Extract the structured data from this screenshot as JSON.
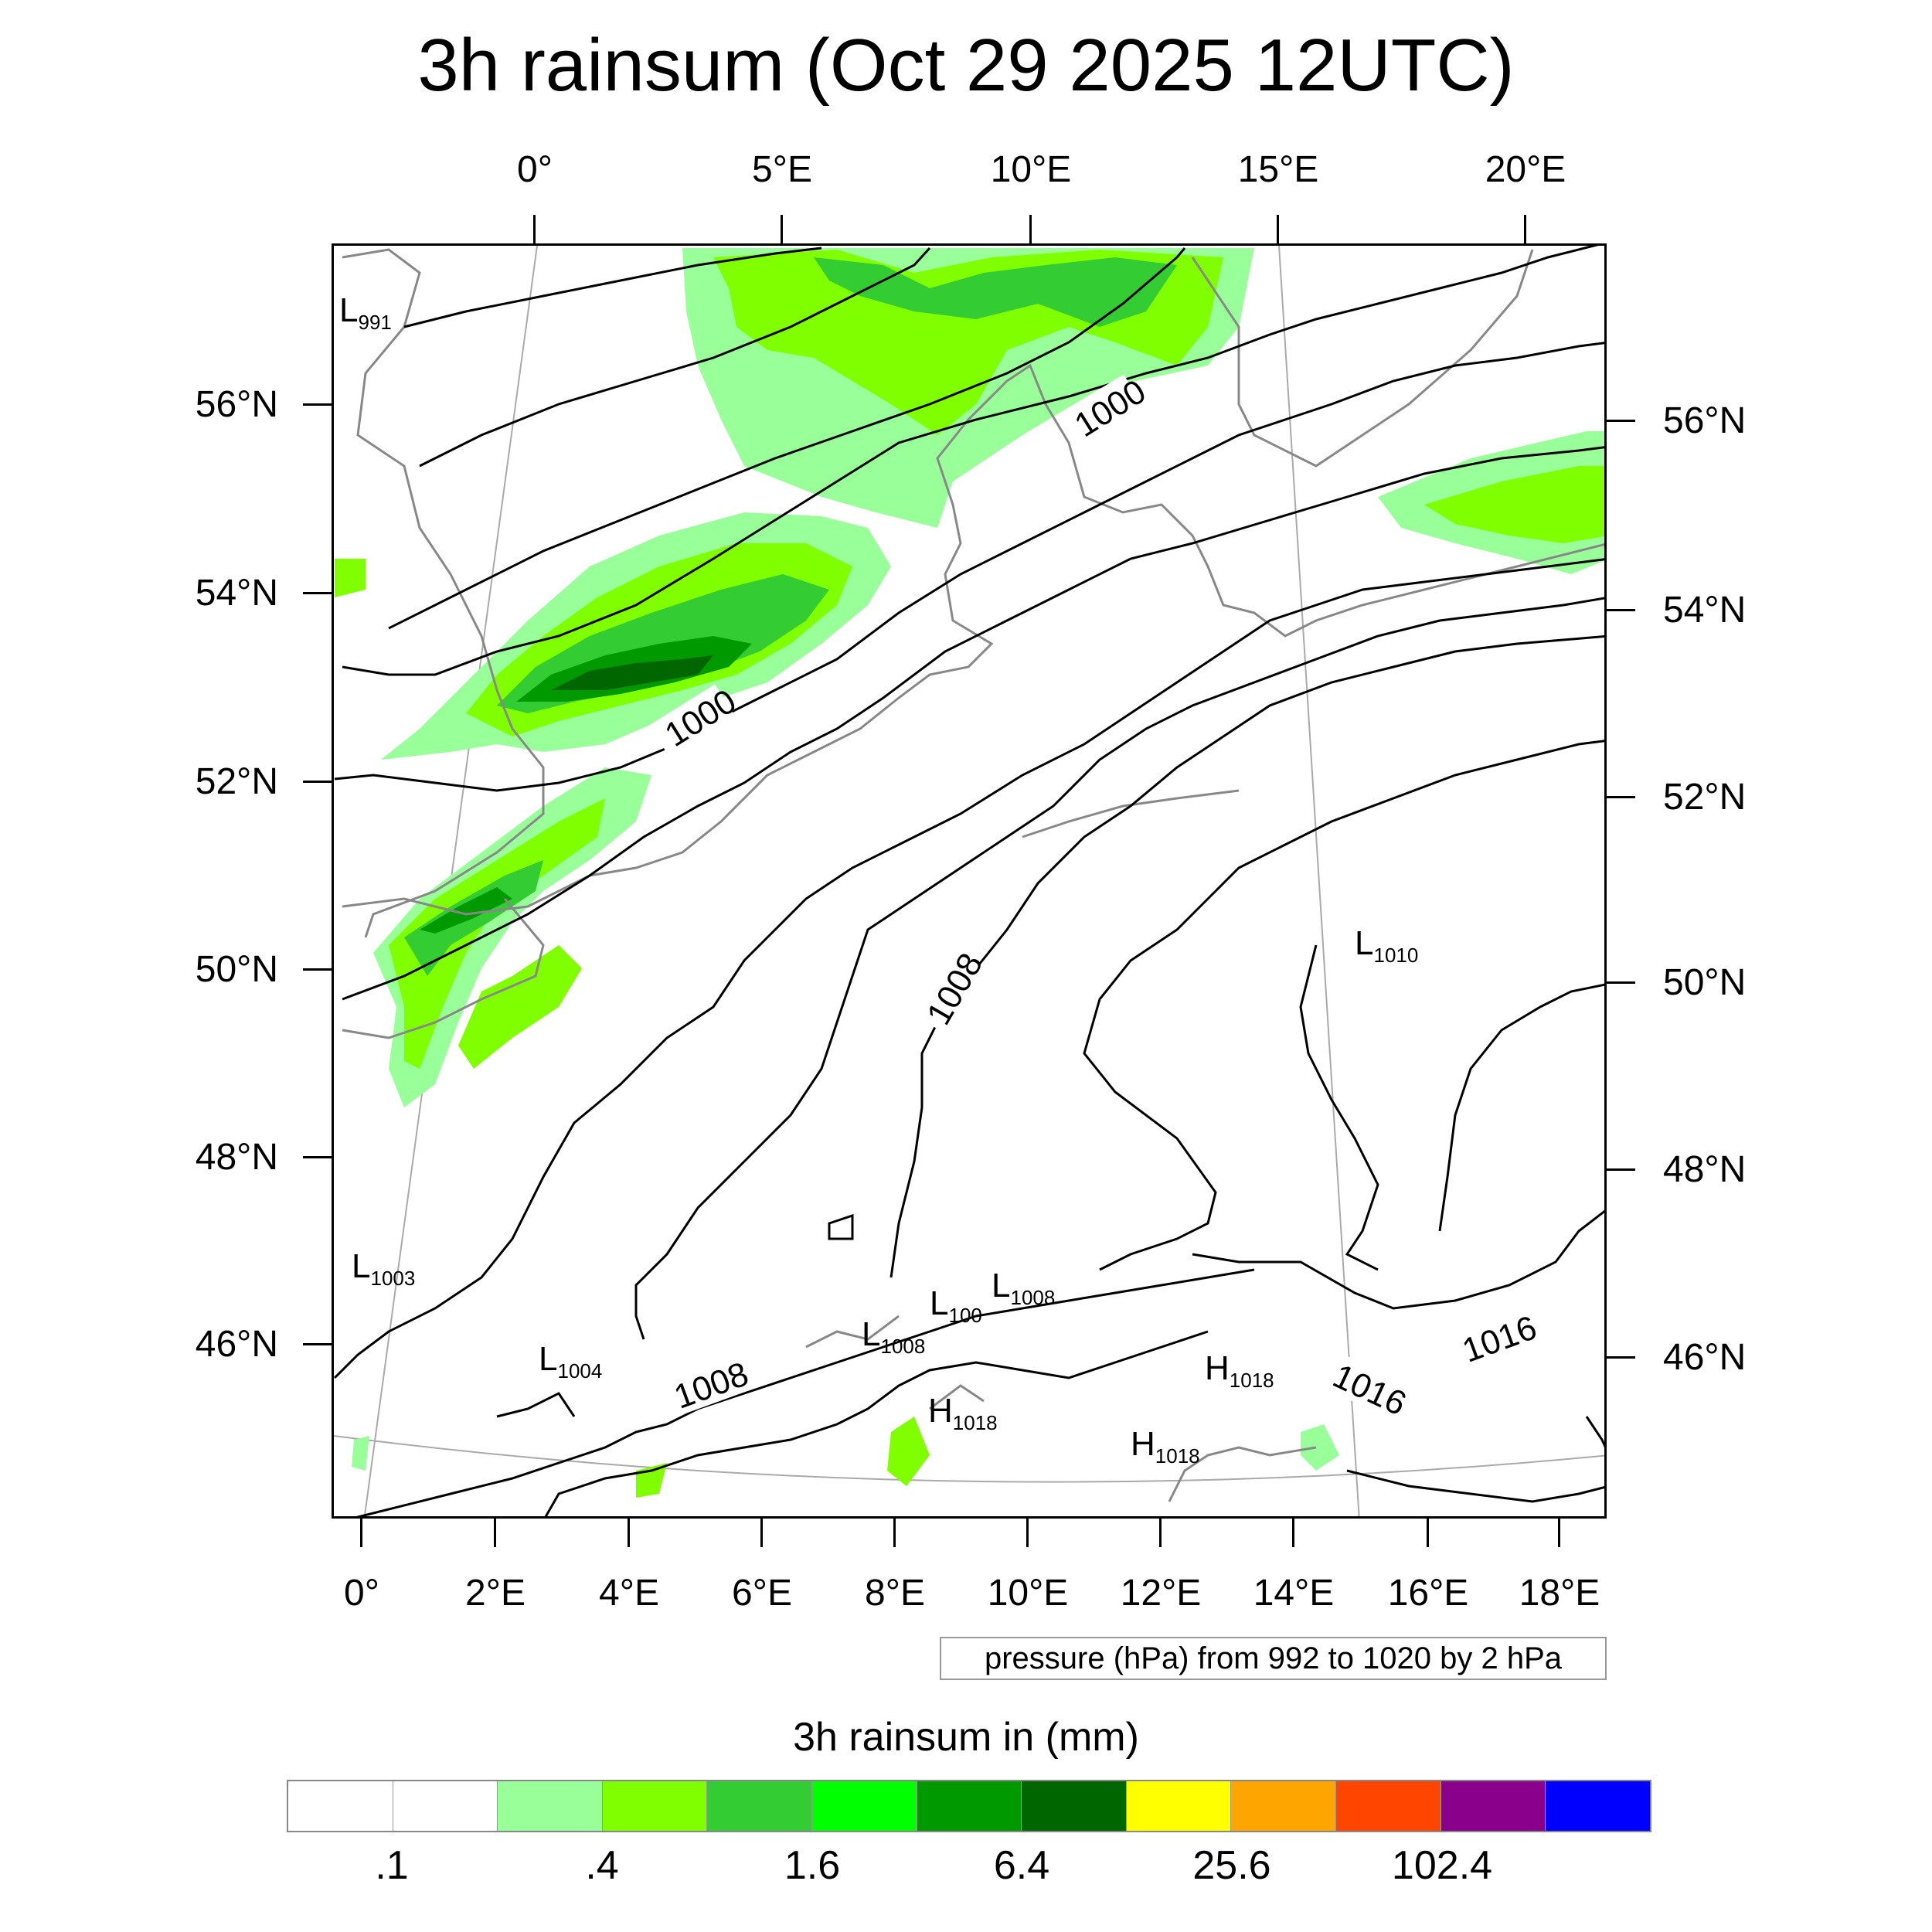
{
  "title": "3h rainsum (Oct 29 2025 12UTC)",
  "top_lon_labels": [
    "0°",
    "5°E",
    "10°E",
    "15°E",
    "20°E"
  ],
  "bottom_lon_labels": [
    "0°",
    "2°E",
    "4°E",
    "6°E",
    "8°E",
    "10°E",
    "12°E",
    "14°E",
    "16°E",
    "18°E"
  ],
  "left_lat_labels": [
    "56°N",
    "54°N",
    "52°N",
    "50°N",
    "48°N",
    "46°N"
  ],
  "right_lat_labels": [
    "56°N",
    "54°N",
    "52°N",
    "50°N",
    "48°N",
    "46°N"
  ],
  "isobar_labels": [
    "1000",
    "1000",
    "1008",
    "1008",
    "1016",
    "1016"
  ],
  "pressure_centers": [
    {
      "letter": "L",
      "value": "991"
    },
    {
      "letter": "L",
      "value": "1003"
    },
    {
      "letter": "L",
      "value": "1004"
    },
    {
      "letter": "L",
      "value": "1008"
    },
    {
      "letter": "L",
      "value": "1008"
    },
    {
      "letter": "L",
      "value": "100"
    },
    {
      "letter": "L",
      "value": "1010"
    },
    {
      "letter": "H",
      "value": "1018"
    },
    {
      "letter": "H",
      "value": "1018"
    },
    {
      "letter": "H",
      "value": "1018"
    }
  ],
  "contour_info": "pressure (hPa) from 992 to 1020 by 2 hPa",
  "colorbar": {
    "title": "3h rainsum in (mm)",
    "tick_labels": [
      ".1",
      ".4",
      "1.6",
      "6.4",
      "25.6",
      "102.4"
    ],
    "colors": [
      "#ffffff",
      "#ffffff",
      "#99ff99",
      "#80ff00",
      "#33cc33",
      "#00ff00",
      "#009900",
      "#006600",
      "#ffff00",
      "#ffa500",
      "#ff4500",
      "#8b008b",
      "#0000ff"
    ]
  },
  "rain_colors": {
    "light": "#99ff99",
    "lime": "#80ff00",
    "medium": "#33cc33",
    "green": "#00ff00",
    "dark": "#009900",
    "darkest": "#006600"
  }
}
